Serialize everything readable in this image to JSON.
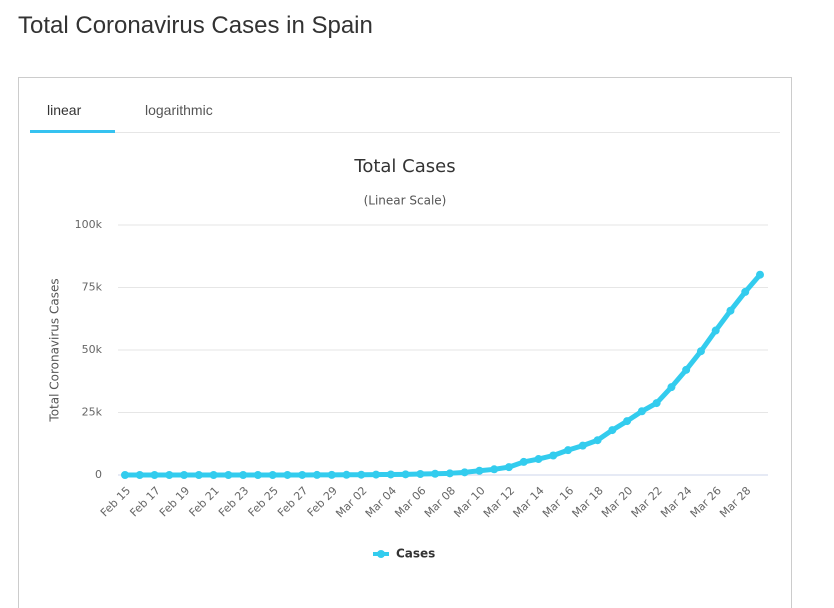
{
  "page_title": "Total Coronavirus Cases in Spain",
  "tabs": [
    "linear",
    "logarithmic"
  ],
  "chart_data": {
    "type": "line",
    "title": "Total Cases",
    "subtitle": "(Linear Scale)",
    "y_label": "Total Coronavirus Cases",
    "categories": [
      "Feb 15",
      null,
      "Feb 17",
      null,
      "Feb 19",
      null,
      "Feb 21",
      null,
      "Feb 23",
      null,
      "Feb 25",
      null,
      "Feb 27",
      null,
      "Feb 29",
      null,
      "Mar 02",
      null,
      "Mar 04",
      null,
      "Mar 06",
      null,
      "Mar 08",
      null,
      "Mar 10",
      null,
      "Mar 12",
      null,
      "Mar 14",
      null,
      "Mar 16",
      null,
      "Mar 18",
      null,
      "Mar 20",
      null,
      "Mar 22",
      null,
      "Mar 24",
      null,
      "Mar 26",
      null,
      "Mar 28",
      null
    ],
    "series": [
      {
        "name": "Cases",
        "color": "#33ccee",
        "values": [
          2,
          2,
          2,
          2,
          2,
          2,
          2,
          2,
          2,
          2,
          6,
          13,
          15,
          32,
          45,
          84,
          120,
          165,
          222,
          259,
          400,
          500,
          673,
          1073,
          1695,
          2277,
          3146,
          5232,
          6391,
          7798,
          9942,
          11748,
          13910,
          17963,
          21571,
          25496,
          28768,
          35136,
          42058,
          49515,
          57786,
          65719,
          73235,
          80110
        ]
      }
    ],
    "ylim": [
      0,
      100000
    ],
    "yticks": [
      {
        "value": 0,
        "label": "0"
      },
      {
        "value": 25000,
        "label": "25k"
      },
      {
        "value": 50000,
        "label": "50k"
      },
      {
        "value": 75000,
        "label": "75k"
      },
      {
        "value": 100000,
        "label": "100k"
      }
    ],
    "grid": true,
    "legend": "bottom"
  }
}
